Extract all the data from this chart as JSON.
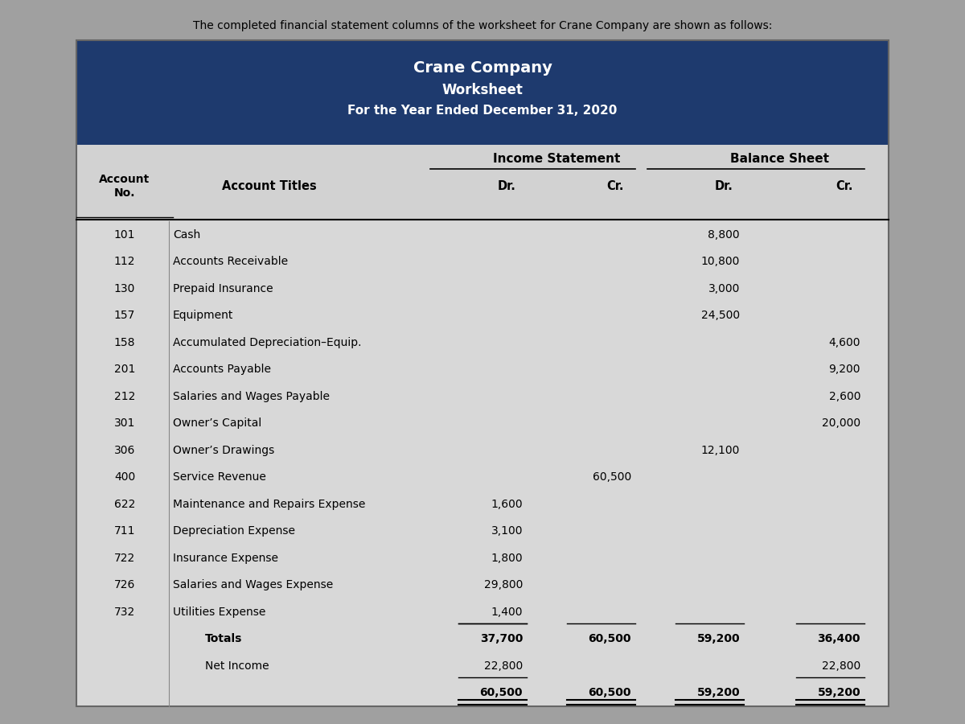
{
  "intro_text": "The completed financial statement columns of the worksheet for Crane Company are shown as follows:",
  "company": "Crane Company",
  "doc_title": "Worksheet",
  "period": "For the Year Ended December 31, 2020",
  "header_bg": "#1e3a6e",
  "header_text_color": "#ffffff",
  "table_bg": "#c8c8c8",
  "data_bg": "#dcdcdc",
  "col_headers": [
    "Income Statement",
    "Balance Sheet"
  ],
  "col_subheaders": [
    "Dr.",
    "Cr.",
    "Dr.",
    "Cr."
  ],
  "accounts": [
    {
      "no": "101",
      "title": "Cash",
      "values": [
        "",
        "",
        "8,800",
        ""
      ]
    },
    {
      "no": "112",
      "title": "Accounts Receivable",
      "values": [
        "",
        "",
        "10,800",
        ""
      ]
    },
    {
      "no": "130",
      "title": "Prepaid Insurance",
      "values": [
        "",
        "",
        "3,000",
        ""
      ]
    },
    {
      "no": "157",
      "title": "Equipment",
      "values": [
        "",
        "",
        "24,500",
        ""
      ]
    },
    {
      "no": "158",
      "title": "Accumulated Depreciation–Equip.",
      "values": [
        "",
        "",
        "",
        "4,600"
      ]
    },
    {
      "no": "201",
      "title": "Accounts Payable",
      "values": [
        "",
        "",
        "",
        "9,200"
      ]
    },
    {
      "no": "212",
      "title": "Salaries and Wages Payable",
      "values": [
        "",
        "",
        "",
        "2,600"
      ]
    },
    {
      "no": "301",
      "title": "Owner’s Capital",
      "values": [
        "",
        "",
        "",
        "20,000"
      ]
    },
    {
      "no": "306",
      "title": "Owner’s Drawings",
      "values": [
        "",
        "",
        "12,100",
        ""
      ]
    },
    {
      "no": "400",
      "title": "Service Revenue",
      "values": [
        "",
        "60,500",
        "",
        ""
      ]
    },
    {
      "no": "622",
      "title": "Maintenance and Repairs Expense",
      "values": [
        "1,600",
        "",
        "",
        ""
      ]
    },
    {
      "no": "711",
      "title": "Depreciation Expense",
      "values": [
        "3,100",
        "",
        "",
        ""
      ]
    },
    {
      "no": "722",
      "title": "Insurance Expense",
      "values": [
        "1,800",
        "",
        "",
        ""
      ]
    },
    {
      "no": "726",
      "title": "Salaries and Wages Expense",
      "values": [
        "29,800",
        "",
        "",
        ""
      ]
    },
    {
      "no": "732",
      "title": "Utilities Expense",
      "values": [
        "1,400",
        "",
        "",
        ""
      ],
      "underline_vals": true
    },
    {
      "no": "",
      "title": "Totals",
      "values": [
        "37,700",
        "60,500",
        "59,200",
        "36,400"
      ],
      "bold": true
    },
    {
      "no": "",
      "title": "Net Income",
      "values": [
        "22,800",
        "",
        "",
        "22,800"
      ],
      "bold": false,
      "underline_ni": true
    },
    {
      "no": "",
      "title": "",
      "values": [
        "60,500",
        "60,500",
        "59,200",
        "59,200"
      ],
      "bold": true,
      "double_underline": true
    }
  ]
}
